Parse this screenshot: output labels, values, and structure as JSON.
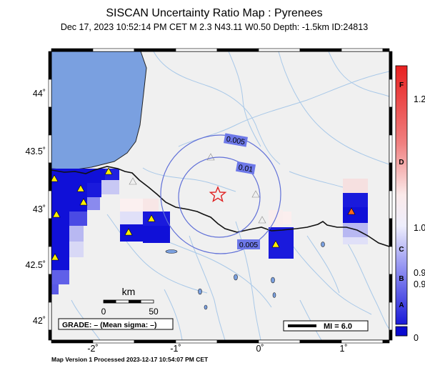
{
  "header": {
    "title": "SISCAN Uncertainty Ratio Map : Pyrenees",
    "subtitle": "Dec 17, 2023 10:52:14 PM CET   M 2.3   N43.11 W0.50   Depth: -1.5km   ID:24813"
  },
  "map": {
    "x_ticks": [
      {
        "label": "-2˚",
        "lon": -2
      },
      {
        "label": "-1˚",
        "lon": -1
      },
      {
        "label": "0˚",
        "lon": 0
      },
      {
        "label": "1˚",
        "lon": 1
      }
    ],
    "y_ticks": [
      {
        "label": "44˚",
        "lat": 44
      },
      {
        "label": "43.5˚",
        "lat": 43.5
      },
      {
        "label": "43˚",
        "lat": 43
      },
      {
        "label": "42.5˚",
        "lat": 42.5
      },
      {
        "label": "42˚",
        "lat": 42
      }
    ],
    "epicenter": {
      "lat": 43.11,
      "lon": -0.5
    },
    "contours": [
      {
        "label": "0.005",
        "level": 0.005
      },
      {
        "label": "0.01",
        "level": 0.01
      },
      {
        "label": "0.005",
        "level": 0.005
      }
    ],
    "scalebar": {
      "title": "km",
      "left_label": "0",
      "right_label": "50"
    },
    "grade_label": "GRADE: – (Mean sigma: –)",
    "mi_label": "MI = 6.0",
    "colors": {
      "water": "#7aa0e0",
      "land": "#f0f0f0",
      "river": "#a8c8e8",
      "contour": "#6070d8",
      "station_active": "#ffee00",
      "station_highlight": "#ff6a1a",
      "epicenter": "#e02020"
    }
  },
  "colorbar": {
    "letters": [
      "F",
      "D",
      "C",
      "B",
      "A"
    ],
    "values": [
      "1.2",
      "1.0",
      "0.9",
      "0.9",
      "0"
    ]
  },
  "footer": {
    "text": "Map Version 1 Processed 2023-12-17 10:54:07 PM CET"
  }
}
